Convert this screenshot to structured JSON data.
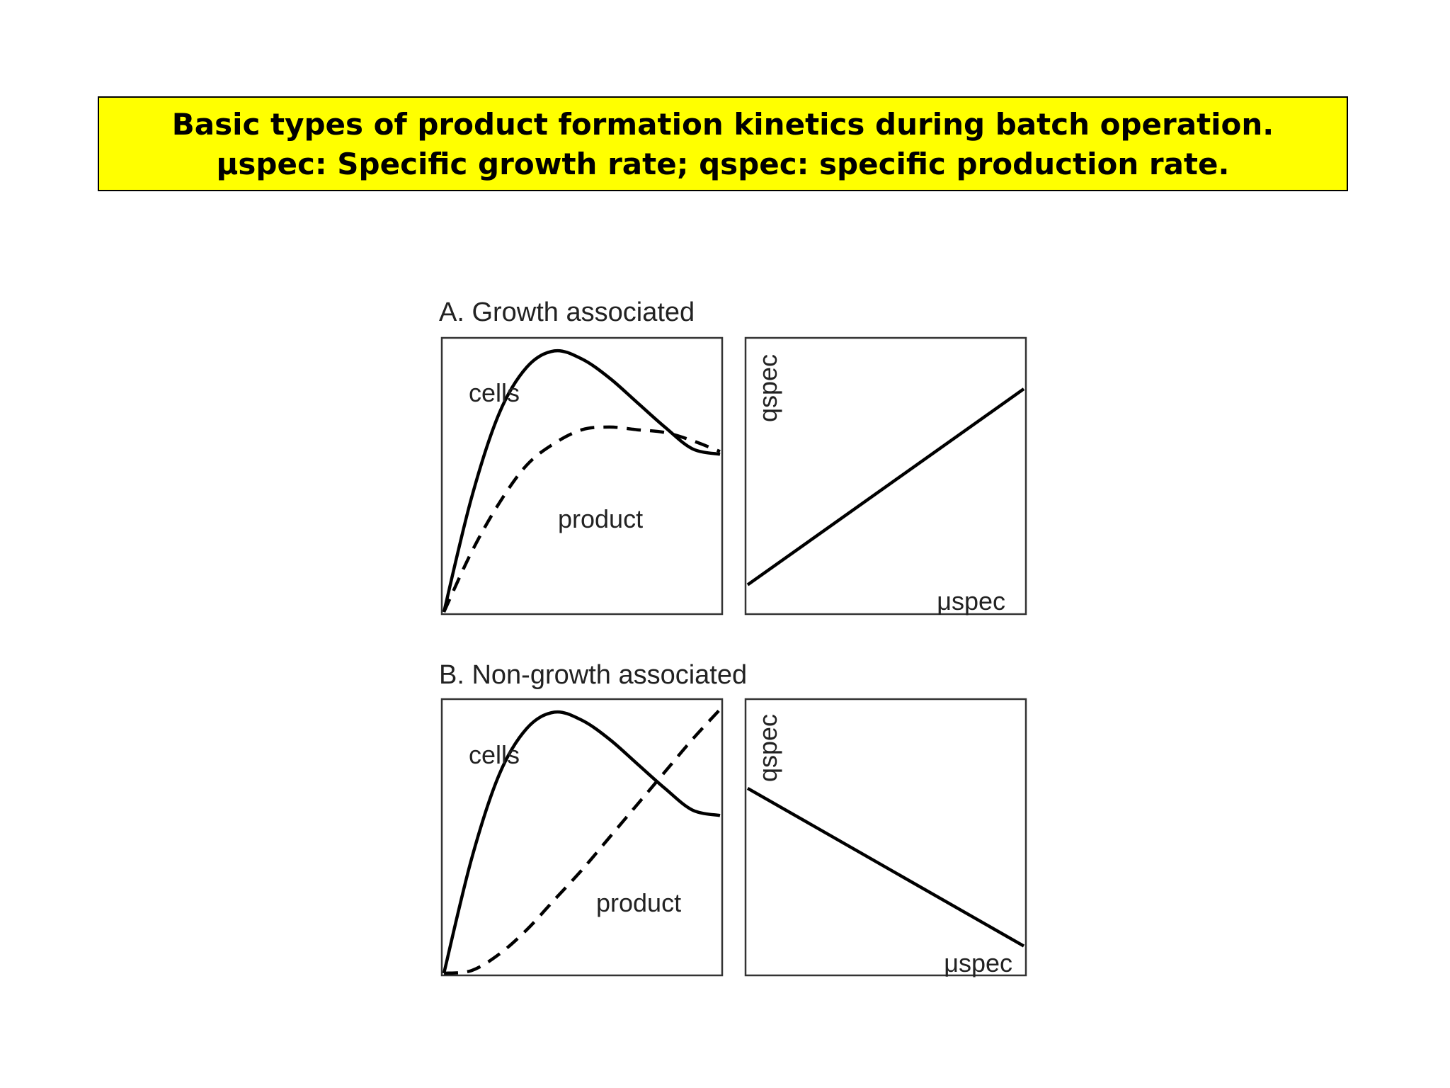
{
  "title": {
    "line1": "Basic types of product formation kinetics during batch operation.",
    "line2": "μspec: Specific growth rate; qspec: specific production rate."
  },
  "panels": {
    "a": {
      "heading": "A. Growth associated"
    },
    "b": {
      "heading": "B. Non-growth associated"
    }
  },
  "colors": {
    "title_background": "#ffff00",
    "line": "#000000"
  },
  "chart_data": [
    {
      "type": "line",
      "panel": "A",
      "x": [
        0,
        0.1,
        0.2,
        0.3,
        0.4,
        0.5,
        0.6,
        0.7,
        0.8,
        0.9,
        1.0
      ],
      "series": [
        {
          "name": "cells",
          "style": "solid",
          "values": [
            0,
            0.42,
            0.73,
            0.9,
            0.96,
            0.93,
            0.86,
            0.77,
            0.68,
            0.6,
            0.58
          ]
        },
        {
          "name": "product",
          "style": "dashed",
          "values": [
            0,
            0.22,
            0.4,
            0.54,
            0.62,
            0.67,
            0.68,
            0.67,
            0.66,
            0.63,
            0.59
          ]
        }
      ],
      "xlabel": "",
      "ylabel": ""
    },
    {
      "type": "line",
      "panel": "A",
      "x": [
        0,
        1
      ],
      "series": [
        {
          "values": [
            0.1,
            0.82
          ]
        }
      ],
      "xlabel": "μspec",
      "ylabel": "qspec"
    },
    {
      "type": "line",
      "panel": "B",
      "x": [
        0,
        0.1,
        0.2,
        0.3,
        0.4,
        0.5,
        0.6,
        0.7,
        0.8,
        0.9,
        1.0
      ],
      "series": [
        {
          "name": "cells",
          "style": "solid",
          "values": [
            0,
            0.42,
            0.73,
            0.9,
            0.96,
            0.93,
            0.86,
            0.77,
            0.68,
            0.6,
            0.58
          ]
        },
        {
          "name": "product",
          "style": "dashed",
          "values": [
            0,
            0.01,
            0.07,
            0.16,
            0.27,
            0.38,
            0.5,
            0.62,
            0.74,
            0.86,
            0.97
          ]
        }
      ],
      "xlabel": "",
      "ylabel": ""
    },
    {
      "type": "line",
      "panel": "B",
      "x": [
        0,
        1
      ],
      "series": [
        {
          "values": [
            0.68,
            0.1
          ]
        }
      ],
      "xlabel": "μspec",
      "ylabel": "qspec"
    }
  ]
}
